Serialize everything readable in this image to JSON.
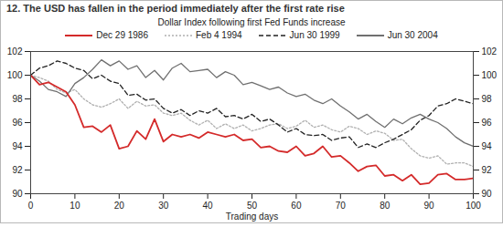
{
  "chart_data": {
    "type": "line",
    "title": "12. The USD has fallen in the period immediately after the first rate rise",
    "subtitle": "Dollar Index following first Fed Funds increase",
    "x_label": "Trading days",
    "x": [
      0,
      2,
      4,
      6,
      8,
      10,
      12,
      14,
      16,
      18,
      20,
      22,
      24,
      26,
      28,
      30,
      32,
      34,
      36,
      38,
      40,
      42,
      44,
      46,
      48,
      50,
      52,
      54,
      56,
      58,
      60,
      62,
      64,
      66,
      68,
      70,
      72,
      74,
      76,
      78,
      80,
      82,
      84,
      86,
      88,
      90,
      92,
      94,
      96,
      98,
      100
    ],
    "series": [
      {
        "name": "Dec 29 1986",
        "color": "#d42a2a",
        "line_style": "solid",
        "values": [
          100,
          99.2,
          99.4,
          99,
          98.6,
          97.5,
          95.6,
          95.7,
          95.2,
          95.8,
          93.8,
          94,
          95.3,
          94.6,
          96.3,
          94.4,
          95,
          94.8,
          95,
          94.7,
          95.2,
          95,
          94.8,
          95,
          94.5,
          94.6,
          93.9,
          94,
          93.6,
          93.5,
          94,
          93.2,
          93.4,
          94,
          93.1,
          93.2,
          92.6,
          91.9,
          92.3,
          92.4,
          91.5,
          91.6,
          91.1,
          91.6,
          90.8,
          90.9,
          91.6,
          91.7,
          91.2,
          91.2,
          91.3
        ]
      },
      {
        "name": "Feb 4 1994",
        "color": "#b0b0b0",
        "line_style": "dotted",
        "values": [
          100,
          99.8,
          99.5,
          98.8,
          98.5,
          98.8,
          98,
          97.5,
          97.3,
          97.6,
          98,
          97.2,
          97.8,
          97.4,
          97.5,
          96.8,
          96.6,
          96.8,
          96.2,
          95.8,
          96.2,
          95.5,
          95.9,
          95.5,
          95.8,
          95.3,
          95.5,
          95.8,
          95.9,
          95.5,
          95.7,
          96.2,
          95.6,
          95.8,
          95.4,
          95.2,
          95.7,
          95.5,
          95,
          95.3,
          95.1,
          94.5,
          94.6,
          93.8,
          93.2,
          93,
          93.2,
          92.5,
          92.6,
          92.6,
          92.3
        ]
      },
      {
        "name": "Jun 30 1999",
        "color": "#222222",
        "line_style": "dashed",
        "values": [
          100,
          100.6,
          100.8,
          101.2,
          101,
          100.6,
          100.4,
          99.7,
          100,
          99.5,
          99.3,
          98.3,
          98.4,
          97.9,
          98,
          97.2,
          96.8,
          97.1,
          96.6,
          97,
          96.8,
          97.2,
          96.5,
          96.6,
          96.3,
          96.7,
          96.1,
          96.3,
          95.8,
          95.2,
          95.5,
          95,
          94.9,
          95,
          94.5,
          94.7,
          94.8,
          93.9,
          94.2,
          93.9,
          94.3,
          94.6,
          95,
          95.4,
          96.2,
          96.6,
          97.4,
          97.6,
          98,
          97.8,
          97.6
        ]
      },
      {
        "name": "Jun 30 2004",
        "color": "#707070",
        "line_style": "solid",
        "values": [
          100,
          99.5,
          98.8,
          98.6,
          98.2,
          99.3,
          99.8,
          100.5,
          101.3,
          100.8,
          101.2,
          100.5,
          100.8,
          99.8,
          100.4,
          99.6,
          100.6,
          101,
          100.3,
          100.4,
          100.5,
          99.8,
          100.3,
          100,
          99.2,
          99.4,
          99.1,
          98.8,
          99,
          98.5,
          98.2,
          98.4,
          97.9,
          97.6,
          98,
          97.4,
          96.9,
          96.3,
          96.7,
          96.1,
          95.6,
          96.3,
          95.9,
          96.4,
          96.7,
          96.3,
          96,
          95.5,
          94.8,
          94.3,
          94
        ]
      }
    ],
    "xlim": [
      0,
      100
    ],
    "xticks": [
      0,
      10,
      20,
      30,
      40,
      50,
      60,
      70,
      80,
      90,
      100
    ],
    "ylim": [
      90,
      102
    ],
    "yticks": [
      90,
      92,
      94,
      96,
      98,
      100,
      102
    ],
    "grid": false,
    "legend": "top"
  }
}
